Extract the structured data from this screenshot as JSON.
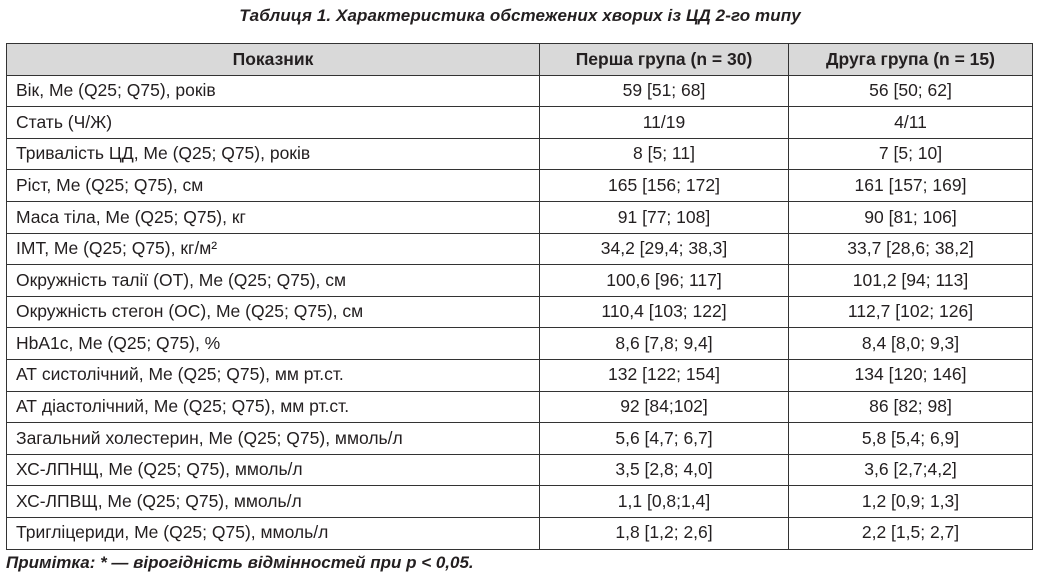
{
  "caption": "Таблиця 1. Характеристика обстежених хворих із ЦД 2-го типу",
  "table": {
    "headers": [
      "Показник",
      "Перша група (n = 30)",
      "Друга група (n = 15)"
    ],
    "rows": [
      [
        "Вік, Me (Q25; Q75), років",
        "59 [51; 68]",
        "56 [50; 62]"
      ],
      [
        "Стать (Ч/Ж)",
        "11/19",
        "4/11"
      ],
      [
        "Тривалість ЦД, Me (Q25; Q75), років",
        "8 [5; 11]",
        "7 [5; 10]"
      ],
      [
        "Ріст, Me (Q25; Q75), см",
        "165 [156; 172]",
        "161 [157; 169]"
      ],
      [
        "Маса тіла, Me (Q25; Q75), кг",
        "91 [77; 108]",
        "90 [81; 106]"
      ],
      [
        "ІМТ, Me (Q25; Q75), кг/м²",
        "34,2 [29,4; 38,3]",
        "33,7 [28,6; 38,2]"
      ],
      [
        "Окружність талії (ОТ), Me (Q25; Q75), см",
        "100,6 [96; 117]",
        "101,2 [94; 113]"
      ],
      [
        "Окружність стегон (ОС), Me (Q25; Q75), см",
        "110,4 [103; 122]",
        "112,7 [102; 126]"
      ],
      [
        "HbA1c, Me (Q25; Q75), %",
        "8,6 [7,8; 9,4]",
        "8,4 [8,0; 9,3]"
      ],
      [
        "АТ систолічний, Me (Q25; Q75), мм рт.ст.",
        "132 [122; 154]",
        "134 [120; 146]"
      ],
      [
        "АТ діастолічний, Me (Q25; Q75), мм рт.ст.",
        "92 [84;102]",
        "86 [82; 98]"
      ],
      [
        "Загальний холестерин, Me (Q25; Q75), ммоль/л",
        "5,6 [4,7; 6,7]",
        "5,8 [5,4; 6,9]"
      ],
      [
        "ХС-ЛПНЩ, Me (Q25; Q75), ммоль/л",
        "3,5 [2,8; 4,0]",
        "3,6 [2,7;4,2]"
      ],
      [
        "ХС-ЛПВЩ, Me (Q25; Q75), ммоль/л",
        "1,1 [0,8;1,4]",
        "1,2 [0,9; 1,3]"
      ],
      [
        "Тригліцериди, Me (Q25; Q75), ммоль/л",
        "1,8 [1,2; 2,6]",
        "2,2 [1,5; 2,7]"
      ]
    ]
  },
  "note": "Примітка: * — вірогідність відмінностей при p < 0,05."
}
